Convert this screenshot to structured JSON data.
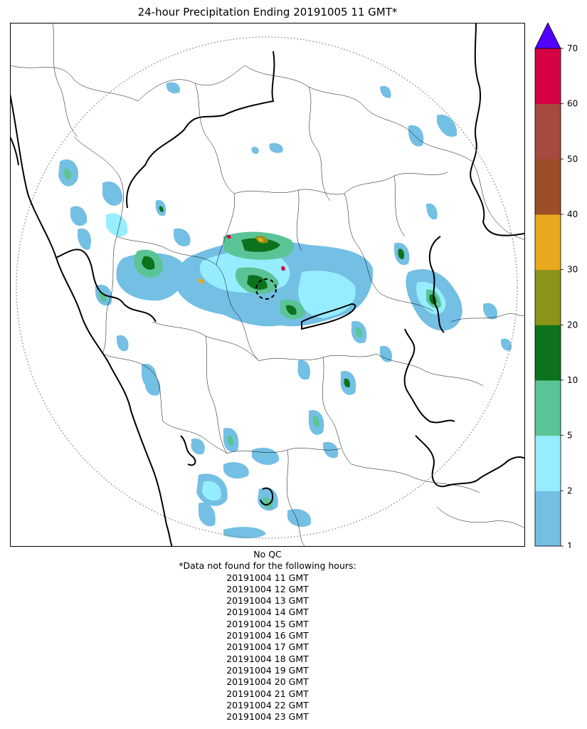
{
  "title": "24-hour Precipitation Ending 20191005 11 GMT*",
  "colorbar": {
    "levels": [
      "1",
      "2",
      "5",
      "10",
      "20",
      "30",
      "40",
      "50",
      "60",
      "70"
    ],
    "colors": [
      "#74bfe4",
      "#96edff",
      "#5bc497",
      "#0c721c",
      "#8c9418",
      "#e8a91e",
      "#9c4e26",
      "#a6493f",
      "#d60044"
    ],
    "extend_color": "#5200ff"
  },
  "map": {
    "range_ring": true,
    "radar_marker": true,
    "precip_colors": {
      "light": "#74bfe4",
      "cyan": "#96edff",
      "green": "#5bc497",
      "dark_green": "#0c721c",
      "olive": "#8c9418",
      "orange": "#e8a91e",
      "brown": "#9c4e26",
      "red": "#d60044"
    }
  },
  "footer": {
    "qc": "No QC",
    "note": "*Data not found for the following hours:",
    "hours": [
      "20191004 11 GMT",
      "20191004 12 GMT",
      "20191004 13 GMT",
      "20191004 14 GMT",
      "20191004 15 GMT",
      "20191004 16 GMT",
      "20191004 17 GMT",
      "20191004 18 GMT",
      "20191004 19 GMT",
      "20191004 20 GMT",
      "20191004 21 GMT",
      "20191004 22 GMT",
      "20191004 23 GMT"
    ]
  }
}
